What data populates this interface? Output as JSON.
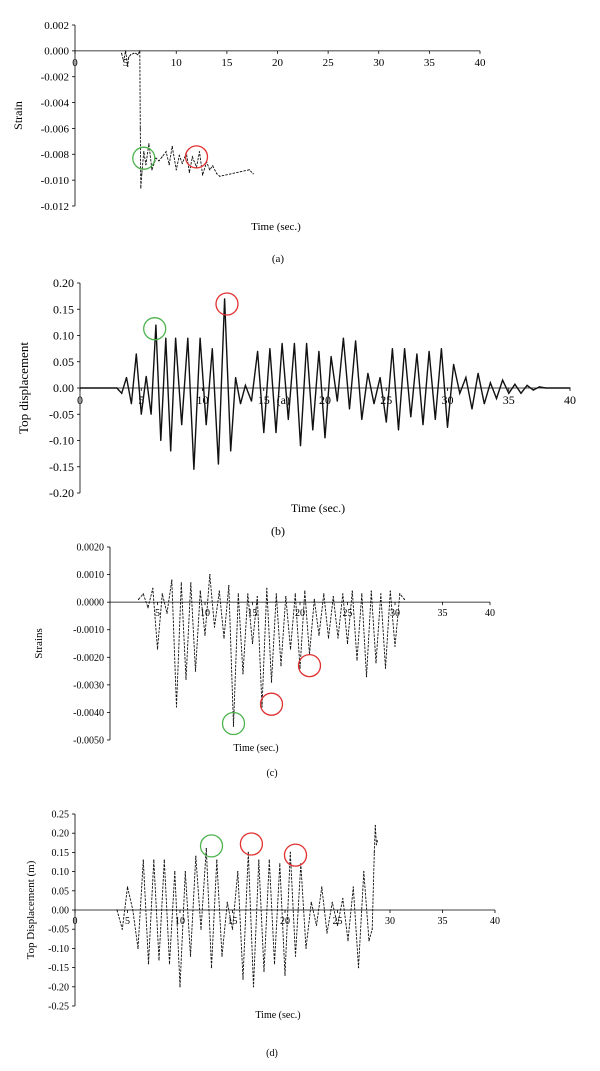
{
  "chart_data": [
    {
      "type": "line",
      "panel_label": "(a)",
      "ylabel": "Strain",
      "xlabel": "Time (sec.)",
      "xlim": [
        0,
        40
      ],
      "ylim": [
        -0.012,
        0.002
      ],
      "x_ticks": [
        0,
        5,
        10,
        15,
        20,
        25,
        30,
        35,
        40
      ],
      "x_tick_labels": [
        "0",
        "5",
        "10",
        "15",
        "20",
        "25",
        "30",
        "35",
        "40"
      ],
      "y_ticks": [
        0.002,
        0.0,
        -0.002,
        -0.004,
        -0.006,
        -0.008,
        -0.01,
        -0.012
      ],
      "y_tick_labels": [
        "0.002",
        "0.000",
        "-0.002",
        "-0.004",
        "-0.006",
        "-0.008",
        "-0.010",
        "-0.012"
      ],
      "series_style": "dotted",
      "series": [
        {
          "x": [
            4.6,
            4.8,
            5.0,
            5.2,
            5.3,
            5.5,
            5.8,
            6.0,
            6.2,
            6.4,
            6.45,
            6.5,
            6.6,
            6.8,
            7.0,
            7.3,
            7.6,
            8.0,
            8.3,
            8.6,
            9.0,
            9.3,
            9.6,
            10.0,
            10.3,
            10.6,
            11.0,
            11.3,
            11.6,
            12.0,
            12.3,
            12.6,
            13.0,
            13.3,
            13.6,
            14.0,
            14.3,
            17.2,
            17.6
          ],
          "y": [
            -0.0002,
            -0.0008,
            0.0,
            -0.0012,
            -0.0005,
            -0.0003,
            -0.0002,
            -0.0002,
            -0.0003,
            0.0,
            -0.006,
            -0.0106,
            -0.0095,
            -0.0078,
            -0.0088,
            -0.0072,
            -0.0092,
            -0.0083,
            -0.0085,
            -0.0082,
            -0.0078,
            -0.0088,
            -0.0074,
            -0.0092,
            -0.0081,
            -0.0087,
            -0.0079,
            -0.0094,
            -0.0082,
            -0.009,
            -0.0078,
            -0.0096,
            -0.0086,
            -0.0092,
            -0.0089,
            -0.0095,
            -0.0097,
            -0.0092,
            -0.0095
          ]
        }
      ],
      "markers": [
        {
          "x": 6.8,
          "y": -0.0083,
          "color": "#4db34d"
        },
        {
          "x": 12.0,
          "y": -0.0082,
          "color": "#e03030"
        }
      ]
    },
    {
      "type": "line",
      "panel_label": "(b)",
      "ylabel": "Top  displacement",
      "xlabel": "Time (sec.)",
      "xlim": [
        0,
        40
      ],
      "ylim": [
        -0.2,
        0.2
      ],
      "x_ticks": [
        0,
        5,
        10,
        15,
        20,
        25,
        30,
        35,
        40
      ],
      "x_tick_labels": [
        "0",
        "5",
        "10",
        "15",
        "20",
        "25",
        "30",
        "35",
        "40"
      ],
      "y_ticks": [
        0.2,
        0.15,
        0.1,
        0.05,
        0.0,
        -0.05,
        -0.1,
        -0.15,
        -0.2
      ],
      "y_tick_labels": [
        "0.20",
        "0.15",
        "0.10",
        "0.05",
        "0.00",
        "-0.05",
        "-0.10",
        "-0.15",
        "-0.20"
      ],
      "stray_label": "(a)",
      "series_style": "solid",
      "series": [
        {
          "x": [
            0,
            3,
            3.4,
            3.8,
            4.2,
            4.6,
            5.0,
            5.4,
            5.8,
            6.2,
            6.6,
            7.0,
            7.4,
            7.8,
            8.3,
            8.8,
            9.3,
            9.8,
            10.3,
            10.8,
            11.3,
            11.8,
            12.3,
            12.7,
            13.1,
            13.5,
            14.0,
            14.5,
            15.0,
            15.5,
            16.0,
            16.5,
            17.0,
            17.5,
            18.0,
            18.5,
            19.0,
            19.5,
            20.0,
            20.5,
            21.0,
            21.5,
            22.0,
            22.5,
            23.0,
            23.5,
            24.0,
            24.5,
            25.0,
            25.5,
            26.0,
            26.5,
            27.0,
            27.5,
            28.0,
            28.5,
            29.0,
            29.5,
            30.0,
            30.5,
            31.0,
            31.5,
            32.0,
            32.5,
            33.0,
            33.5,
            34.0,
            34.5,
            35.0,
            35.5,
            36.0,
            36.5,
            37.0,
            37.5,
            38.0,
            40.0
          ],
          "y": [
            0.0,
            0.0,
            -0.01,
            0.02,
            -0.03,
            0.065,
            -0.05,
            0.022,
            -0.05,
            0.12,
            -0.1,
            0.095,
            -0.12,
            0.095,
            -0.07,
            0.095,
            -0.155,
            0.095,
            -0.07,
            0.075,
            -0.145,
            0.17,
            -0.12,
            0.02,
            -0.03,
            0.005,
            -0.025,
            0.07,
            -0.085,
            0.075,
            -0.085,
            0.085,
            -0.06,
            0.085,
            -0.11,
            0.085,
            -0.08,
            0.07,
            -0.095,
            0.06,
            -0.025,
            0.095,
            -0.04,
            0.09,
            -0.06,
            0.028,
            -0.03,
            0.02,
            -0.065,
            0.075,
            -0.08,
            0.075,
            -0.055,
            0.065,
            -0.07,
            0.07,
            -0.06,
            0.075,
            -0.075,
            0.045,
            -0.01,
            0.02,
            -0.04,
            0.028,
            -0.03,
            0.01,
            -0.02,
            0.015,
            -0.01,
            0.007,
            -0.01,
            0.005,
            -0.004,
            0.002,
            0.0,
            0.0
          ]
        }
      ],
      "markers": [
        {
          "x": 6.1,
          "y": 0.113,
          "color": "#4db34d"
        },
        {
          "x": 12.0,
          "y": 0.16,
          "color": "#e03030"
        }
      ]
    },
    {
      "type": "line",
      "panel_label": "(c)",
      "ylabel": "Strains",
      "xlabel": "Time (sec.)",
      "xlim": [
        0,
        40
      ],
      "ylim": [
        -0.005,
        0.002
      ],
      "x_ticks": [
        5,
        10,
        15,
        20,
        25,
        30,
        35,
        40
      ],
      "x_tick_labels": [
        "5",
        "10",
        "15",
        "20",
        "25",
        "30",
        "35",
        "40"
      ],
      "y_ticks": [
        0.002,
        0.001,
        0.0,
        -0.001,
        -0.002,
        -0.003,
        -0.004,
        -0.005
      ],
      "y_tick_labels": [
        "0.0020",
        "0.0010",
        "0.0000",
        "-0.0010",
        "-0.0020",
        "-0.0030",
        "-0.0040",
        "-0.0050"
      ],
      "series_style": "dotted",
      "series": [
        {
          "x": [
            3.0,
            3.5,
            4.0,
            4.5,
            5.0,
            5.5,
            6.0,
            6.5,
            7.0,
            7.5,
            8.0,
            8.5,
            9.0,
            9.5,
            10.0,
            10.5,
            11.0,
            11.5,
            12.0,
            12.5,
            13.0,
            13.5,
            14.0,
            14.5,
            15.0,
            15.5,
            16.0,
            16.5,
            17.0,
            17.5,
            18.0,
            18.5,
            19.0,
            19.5,
            20.0,
            20.5,
            21.0,
            21.5,
            22.0,
            22.5,
            23.0,
            23.5,
            24.0,
            24.5,
            25.0,
            25.5,
            26.0,
            26.5,
            27.0,
            27.5,
            28.0,
            28.5,
            29.0,
            29.5,
            30.0,
            30.5,
            31.0
          ],
          "y": [
            0.0001,
            0.0003,
            -0.0002,
            0.0005,
            -0.0017,
            0.0003,
            -0.0004,
            0.0008,
            -0.0038,
            0.0007,
            -0.0028,
            0.0007,
            -0.0025,
            0.0004,
            -0.0012,
            0.001,
            -0.0009,
            0.0004,
            -0.0013,
            0.0006,
            -0.0045,
            0.0003,
            -0.0026,
            0.0003,
            -0.0015,
            0.0002,
            -0.0038,
            0.0005,
            -0.0029,
            0.0003,
            -0.0023,
            0.0002,
            -0.0017,
            0.0003,
            -0.0024,
            0.0004,
            -0.0019,
            0.0001,
            -0.0012,
            0.0003,
            -0.0013,
            0.0002,
            -0.0013,
            0.0003,
            -0.0015,
            0.0004,
            -0.0021,
            0.0003,
            -0.0027,
            0.0004,
            -0.0022,
            0.0003,
            -0.0024,
            0.0004,
            -0.0016,
            0.0003,
            0.0001
          ]
        }
      ],
      "markers": [
        {
          "x": 13.0,
          "y": -0.0044,
          "color": "#4db34d"
        },
        {
          "x": 17.0,
          "y": -0.0037,
          "color": "#e03030"
        },
        {
          "x": 21.0,
          "y": -0.0023,
          "color": "#e03030"
        }
      ]
    },
    {
      "type": "line",
      "panel_label": "(d)",
      "ylabel": "Top Displacement (m)",
      "xlabel": "Time (sec.)",
      "xlim": [
        0,
        40
      ],
      "ylim": [
        -0.25,
        0.25
      ],
      "x_ticks": [
        0,
        5,
        10,
        15,
        20,
        25,
        30,
        35,
        40
      ],
      "x_tick_labels": [
        "0",
        "5",
        "10",
        "15",
        "20",
        "25",
        "30",
        "35",
        "40"
      ],
      "y_ticks": [
        0.25,
        0.2,
        0.15,
        0.1,
        0.05,
        0.0,
        -0.05,
        -0.1,
        -0.15,
        -0.2,
        -0.25
      ],
      "y_tick_labels": [
        "0.25",
        "0.20",
        "0.15",
        "0.10",
        "0.05",
        "0.00",
        "-0.05",
        "-0.10",
        "-0.15",
        "-0.20",
        "-0.25"
      ],
      "series_style": "dotted",
      "series": [
        {
          "x": [
            4.0,
            4.5,
            5.0,
            5.5,
            6.0,
            6.5,
            7.0,
            7.5,
            8.0,
            8.5,
            9.0,
            9.5,
            10.0,
            10.5,
            11.0,
            11.5,
            12.0,
            12.5,
            13.0,
            13.5,
            14.0,
            14.5,
            15.0,
            15.5,
            16.0,
            16.5,
            17.0,
            17.5,
            18.0,
            18.5,
            19.0,
            19.5,
            20.0,
            20.5,
            21.0,
            21.5,
            22.0,
            22.5,
            23.0,
            23.5,
            24.0,
            24.5,
            25.0,
            25.5,
            26.0,
            26.5,
            27.0,
            27.5,
            28.0,
            28.3,
            28.5,
            28.6,
            28.7,
            28.8
          ],
          "y": [
            0.0,
            -0.05,
            0.06,
            0.0,
            -0.1,
            0.13,
            -0.14,
            0.13,
            -0.13,
            0.13,
            -0.14,
            0.1,
            -0.2,
            0.1,
            -0.12,
            0.14,
            -0.05,
            0.16,
            -0.15,
            0.13,
            -0.12,
            0.02,
            -0.05,
            0.1,
            -0.18,
            0.15,
            -0.2,
            0.13,
            -0.16,
            0.13,
            -0.14,
            0.12,
            -0.17,
            0.15,
            -0.12,
            0.12,
            -0.1,
            0.02,
            -0.04,
            0.06,
            -0.06,
            0.02,
            -0.04,
            0.03,
            -0.08,
            0.06,
            -0.15,
            0.1,
            -0.08,
            -0.05,
            0.15,
            0.22,
            0.17,
            0.18
          ]
        }
      ],
      "markers": [
        {
          "x": 13.0,
          "y": 0.167,
          "color": "#4db34d"
        },
        {
          "x": 16.8,
          "y": 0.172,
          "color": "#e03030"
        },
        {
          "x": 21.0,
          "y": 0.143,
          "color": "#e03030"
        }
      ]
    }
  ]
}
